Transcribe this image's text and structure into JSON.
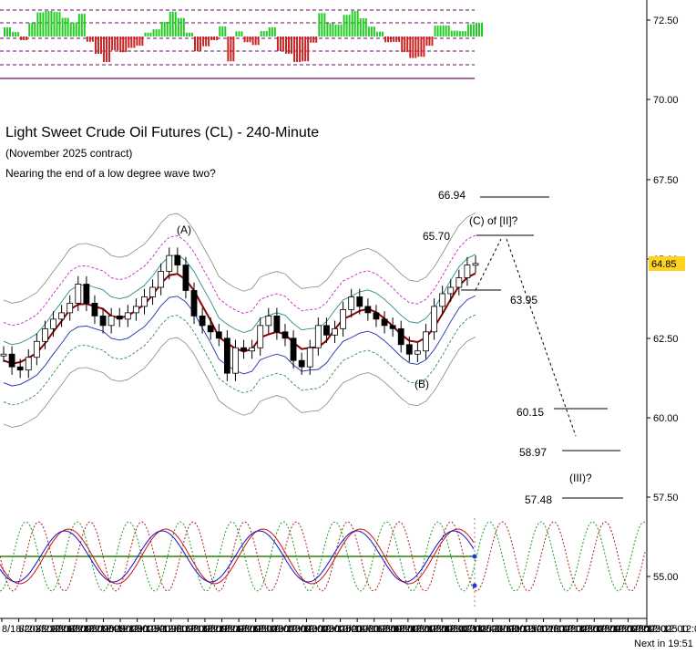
{
  "header": {
    "title": "Light Sweet Crude Oil Futures (CL) - 240-Minute",
    "subtitle": "(November 2025 contract)",
    "note": "Nearing the end of a low degree wave two?"
  },
  "footer": {
    "next_label": "Next in 19:51"
  },
  "colors": {
    "ma_slow": "#8b0000",
    "band_inner": "#1f2fb0",
    "band_mid": "#2e8b57",
    "band_teal": "#2a8a8a",
    "band_pink": "#cc22cc",
    "band_gray": "#888888",
    "osc_green": "#22cc22",
    "osc_red": "#cc2222",
    "price_box": "#ffd21f",
    "cycle_red": "#aa2222",
    "cycle_green": "#229922"
  },
  "chart_data": {
    "type": "candlestick",
    "title": "Light Sweet Crude Oil Futures (CL) - 240-Minute",
    "y_axis": {
      "ticks": [
        "72.50",
        "70.00",
        "67.50",
        "65.00",
        "62.50",
        "60.00",
        "57.50",
        "55.00"
      ],
      "ylim": [
        53.5,
        73.0
      ]
    },
    "x_axis": {
      "tick_labels": [
        "8/18/2025 12:00",
        "8/20/2025 12:00",
        "8/22/2025 12:00",
        "8/26/2025 12:00",
        "8/28/2025 12:00",
        "9/2/2025 12:00",
        "9/4/2025 12:00",
        "9/8/2025 12:00",
        "9/10/2025 12:00",
        "9/12/2025 12:00",
        "9/16/2025 12:00",
        "9/18/2025 12:00",
        "9/22/2025 12:00",
        "9/24/2025 12:00",
        "9/26/2025 12:00",
        "9/30/2025 12:00",
        "10/2/2025 12:00",
        "10/6/2025 12:00",
        "10/8/2025 12:00",
        "10/10/2025 12:00",
        "10/14/2025 12:00",
        "10/16/2025 12:00",
        "10/20/2025 12:00",
        "10/22/2025 12:00",
        "10/24/2025 12:00",
        "10/28/2025 12:00",
        "10/30/2025 12:00",
        "11/1/2025 12:00",
        "11/4/2025 12:00",
        "11/6/2025 12:00",
        "11/10/2025 12:00",
        "11/12/2025 12:00",
        "11/14/2025 12:00",
        "11/18/2025 12:00",
        "11/20/2025 12:00",
        "11/24/2025 12:00",
        "11/26/2025 12:00",
        "11/28/2025 12:00"
      ]
    },
    "last_price": "64.85",
    "price_close_path": [
      62.0,
      61.6,
      61.5,
      61.9,
      62.4,
      62.8,
      63.1,
      63.3,
      63.6,
      64.2,
      63.6,
      63.2,
      62.9,
      63.2,
      63.1,
      63.3,
      63.5,
      63.8,
      64.1,
      64.6,
      65.1,
      64.8,
      64.0,
      63.2,
      62.9,
      62.7,
      62.5,
      61.4,
      62.2,
      62.1,
      62.2,
      62.9,
      63.2,
      62.7,
      62.5,
      61.8,
      61.6,
      62.2,
      62.9,
      62.6,
      62.8,
      63.4,
      63.8,
      63.5,
      63.3,
      63.1,
      62.9,
      62.8,
      62.3,
      62.0,
      62.1,
      62.7,
      63.5,
      63.9,
      64.1,
      64.4,
      64.8,
      64.85
    ],
    "levels": [
      {
        "label": "66.94",
        "value": 66.94
      },
      {
        "label": "65.70",
        "value": 65.7
      },
      {
        "label": "63.95",
        "value": 63.95
      },
      {
        "label": "60.15",
        "value": 60.15
      },
      {
        "label": "58.97",
        "value": 58.97
      },
      {
        "label": "57.48",
        "value": 57.48
      }
    ],
    "wave_labels": [
      {
        "label": "(A)"
      },
      {
        "label": "(B)"
      },
      {
        "label": "(C) of [II]?"
      },
      {
        "label": "(III)?"
      }
    ],
    "oscillator_panel": {
      "type": "histogram",
      "positive_color": "green",
      "negative_color": "red"
    },
    "cycle_panel": {
      "type": "line",
      "series": [
        "red",
        "blue",
        "green"
      ]
    }
  }
}
